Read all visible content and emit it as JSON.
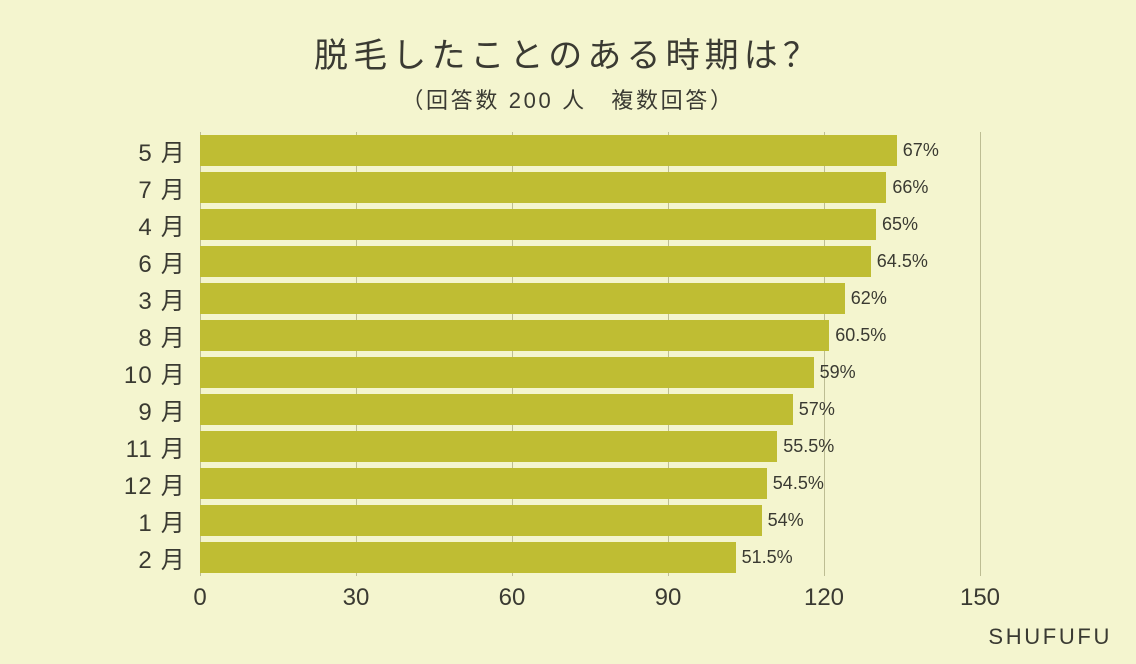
{
  "background_color": "#f4f5cf",
  "text_color": "#3a3a32",
  "title": {
    "text": "脱毛したことのある時期は？",
    "fontsize": 34,
    "color": "#3a3a32"
  },
  "subtitle": {
    "text": "（回答数 200 人　複数回答）",
    "fontsize": 22,
    "color": "#3a3a32"
  },
  "brand": {
    "text": "SHUFUFU",
    "fontsize": 22,
    "color": "#3a3a32"
  },
  "chart": {
    "type": "horizontal-bar",
    "xlim": [
      0,
      150
    ],
    "xticks": [
      0,
      30,
      60,
      90,
      120,
      150
    ],
    "xtick_fontsize": 24,
    "ylabel_fontsize": 24,
    "value_fontsize": 18,
    "grid_color": "#bdbd93",
    "bar_color": "#bfbd33",
    "bar_gap_ratio": 0.18,
    "rows": [
      {
        "label": "5 月",
        "value": 134,
        "pct": "67%"
      },
      {
        "label": "7 月",
        "value": 132,
        "pct": "66%"
      },
      {
        "label": "4 月",
        "value": 130,
        "pct": "65%"
      },
      {
        "label": "6 月",
        "value": 129,
        "pct": "64.5%"
      },
      {
        "label": "3 月",
        "value": 124,
        "pct": "62%"
      },
      {
        "label": "8 月",
        "value": 121,
        "pct": "60.5%"
      },
      {
        "label": "10 月",
        "value": 118,
        "pct": "59%"
      },
      {
        "label": "9 月",
        "value": 114,
        "pct": "57%"
      },
      {
        "label": "11 月",
        "value": 111,
        "pct": "55.5%"
      },
      {
        "label": "12 月",
        "value": 109,
        "pct": "54.5%"
      },
      {
        "label": "1 月",
        "value": 108,
        "pct": "54%"
      },
      {
        "label": "2 月",
        "value": 103,
        "pct": "51.5%"
      }
    ]
  }
}
